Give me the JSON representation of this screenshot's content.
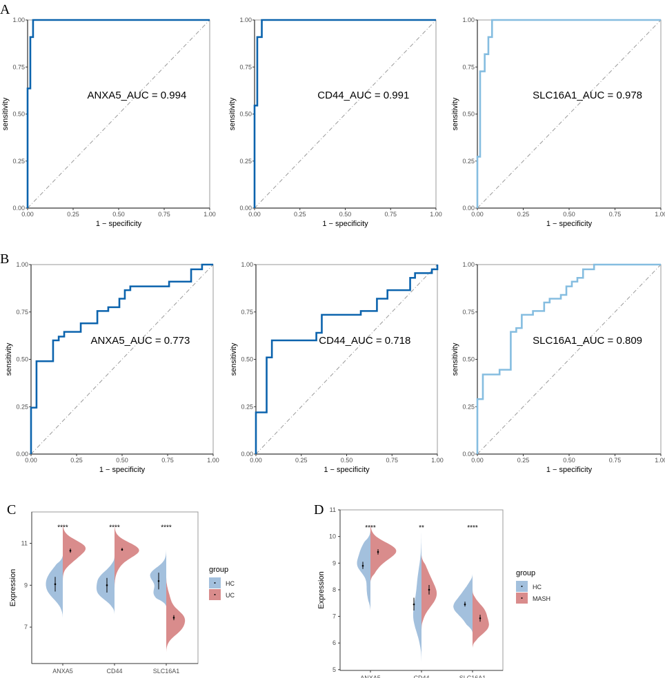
{
  "panel_letters": [
    "A",
    "B",
    "C",
    "D"
  ],
  "colors": {
    "roc_dark": "#0b63ad",
    "roc_light": "#85bde0",
    "HC": "#a3c0dd",
    "UC": "#d98c8c",
    "MASH": "#d98c8c",
    "diagonal": "#9a9a9a"
  },
  "chart_data": [
    {
      "panel": "A",
      "type": "line",
      "gene": "ANXA5",
      "label": "ANXA5_AUC =  0.994",
      "xlabel": "1 − specificity",
      "ylabel": "sensitivity",
      "xlim": [
        0,
        1
      ],
      "ylim": [
        0,
        1
      ],
      "xticks": [
        "0.00",
        "0.25",
        "0.50",
        "0.75",
        "1.00"
      ],
      "yticks": [
        "0.00",
        "0.25",
        "0.50",
        "0.75",
        "1.00"
      ],
      "color": "roc_dark",
      "points": [
        [
          0,
          0.636
        ],
        [
          0.015,
          0.909
        ],
        [
          0.03,
          1
        ],
        [
          1,
          1
        ]
      ]
    },
    {
      "panel": "A",
      "type": "line",
      "gene": "CD44",
      "label": "CD44_AUC =  0.991",
      "xlabel": "1 − specificity",
      "ylabel": "sensitivity",
      "xlim": [
        0,
        1
      ],
      "ylim": [
        0,
        1
      ],
      "xticks": [
        "0.00",
        "0.25",
        "0.50",
        "0.75",
        "1.00"
      ],
      "yticks": [
        "0.00",
        "0.25",
        "0.50",
        "0.75",
        "1.00"
      ],
      "color": "roc_dark",
      "points": [
        [
          0,
          0.545
        ],
        [
          0.015,
          0.909
        ],
        [
          0.04,
          1
        ],
        [
          1,
          1
        ]
      ]
    },
    {
      "panel": "A",
      "type": "line",
      "gene": "SLC16A1",
      "label": "SLC16A1_AUC =  0.978",
      "xlabel": "1 − specificity",
      "ylabel": "sensitivity",
      "xlim": [
        0,
        1
      ],
      "ylim": [
        0,
        1
      ],
      "xticks": [
        "0.00",
        "0.25",
        "0.50",
        "0.75",
        "1.00"
      ],
      "yticks": [
        "0.00",
        "0.25",
        "0.50",
        "0.75",
        "1.00"
      ],
      "color": "roc_light",
      "points": [
        [
          0,
          0.273
        ],
        [
          0.015,
          0.727
        ],
        [
          0.04,
          0.818
        ],
        [
          0.06,
          0.909
        ],
        [
          0.08,
          1
        ],
        [
          1,
          1
        ]
      ]
    },
    {
      "panel": "B",
      "type": "line",
      "gene": "ANXA5",
      "label": "ANXA5_AUC =  0.773",
      "xlabel": "1 − specificity",
      "ylabel": "sensitivity",
      "xlim": [
        0,
        1
      ],
      "ylim": [
        0,
        1
      ],
      "xticks": [
        "0.00",
        "0.25",
        "0.50",
        "0.75",
        "1.00"
      ],
      "yticks": [
        "0.00",
        "0.25",
        "0.50",
        "0.75",
        "1.00"
      ],
      "color": "roc_dark",
      "points": [
        [
          0,
          0.245
        ],
        [
          0.03,
          0.49
        ],
        [
          0.121,
          0.6
        ],
        [
          0.152,
          0.62
        ],
        [
          0.182,
          0.645
        ],
        [
          0.273,
          0.69
        ],
        [
          0.364,
          0.755
        ],
        [
          0.424,
          0.775
        ],
        [
          0.485,
          0.82
        ],
        [
          0.515,
          0.865
        ],
        [
          0.545,
          0.885
        ],
        [
          0.758,
          0.91
        ],
        [
          0.879,
          0.975
        ],
        [
          0.939,
          1
        ],
        [
          1,
          1
        ]
      ]
    },
    {
      "panel": "B",
      "type": "line",
      "gene": "CD44",
      "label": "CD44_AUC =  0.718",
      "xlabel": "1 − specificity",
      "ylabel": "sensitivity",
      "xlim": [
        0,
        1
      ],
      "ylim": [
        0,
        1
      ],
      "xticks": [
        "0.00",
        "0.25",
        "0.50",
        "0.75",
        "1.00"
      ],
      "yticks": [
        "0.00",
        "0.25",
        "0.50",
        "0.75",
        "1.00"
      ],
      "color": "roc_dark",
      "points": [
        [
          0,
          0.22
        ],
        [
          0.059,
          0.51
        ],
        [
          0.088,
          0.6
        ],
        [
          0.333,
          0.64
        ],
        [
          0.363,
          0.735
        ],
        [
          0.578,
          0.755
        ],
        [
          0.667,
          0.82
        ],
        [
          0.725,
          0.865
        ],
        [
          0.85,
          0.93
        ],
        [
          0.877,
          0.955
        ],
        [
          0.97,
          0.975
        ],
        [
          1,
          0.978
        ],
        [
          1,
          1
        ]
      ]
    },
    {
      "panel": "B",
      "type": "line",
      "gene": "SLC16A1",
      "label": "SLC16A1_AUC =  0.809",
      "xlabel": "1 − specificity",
      "ylabel": "sensitivity",
      "xlim": [
        0,
        1
      ],
      "ylim": [
        0,
        1
      ],
      "xticks": [
        "0.00",
        "0.25",
        "0.50",
        "0.75",
        "1.00"
      ],
      "yticks": [
        "0.00",
        "0.25",
        "0.50",
        "0.75",
        "1.00"
      ],
      "color": "roc_light",
      "points": [
        [
          0,
          0.29
        ],
        [
          0.03,
          0.42
        ],
        [
          0.121,
          0.445
        ],
        [
          0.182,
          0.645
        ],
        [
          0.212,
          0.665
        ],
        [
          0.242,
          0.735
        ],
        [
          0.303,
          0.755
        ],
        [
          0.364,
          0.8
        ],
        [
          0.394,
          0.82
        ],
        [
          0.455,
          0.84
        ],
        [
          0.485,
          0.885
        ],
        [
          0.515,
          0.91
        ],
        [
          0.545,
          0.93
        ],
        [
          0.576,
          0.975
        ],
        [
          0.636,
          1
        ],
        [
          1,
          1
        ]
      ]
    },
    {
      "panel": "C",
      "type": "split-violin",
      "ylabel": "Expression",
      "ylim": [
        5.26,
        12.5
      ],
      "yticks": [
        7,
        9,
        11
      ],
      "categories": [
        "ANXA5",
        "CD44",
        "SLC16A1"
      ],
      "groups": [
        "HC",
        "UC"
      ],
      "legend_title": "group",
      "legend": "right",
      "significance": [
        "****",
        "****",
        "****"
      ],
      "significance_y": 11.8,
      "violins": [
        {
          "HC": {
            "range": [
              7.4,
              10.4
            ],
            "density": [
              [
                9.3,
                0.55,
                0.6
              ],
              [
                8.6,
                0.4,
                0.3
              ]
            ],
            "mean": 9.05,
            "err": [
              8.7,
              9.4
            ]
          },
          "UC": {
            "range": [
              9.0,
              12.1
            ],
            "density": [
              [
                10.8,
                0.35,
                0.9
              ],
              [
                10.2,
                0.3,
                0.3
              ]
            ],
            "mean": 10.65,
            "err": [
              10.55,
              10.75
            ]
          }
        },
        {
          "HC": {
            "range": [
              7.6,
              10.4
            ],
            "density": [
              [
                9.3,
                0.4,
                0.6
              ],
              [
                8.6,
                0.35,
                0.55
              ]
            ],
            "mean": 9.0,
            "err": [
              8.65,
              9.35
            ]
          },
          "UC": {
            "range": [
              8.7,
              12.2
            ],
            "density": [
              [
                10.7,
                0.35,
                0.95
              ],
              [
                10.1,
                0.4,
                0.2
              ]
            ],
            "mean": 10.7,
            "err": [
              10.65,
              10.78
            ]
          }
        },
        {
          "HC": {
            "range": [
              8.0,
              10.9
            ],
            "density": [
              [
                9.5,
                0.35,
                0.65
              ],
              [
                8.6,
                0.35,
                0.5
              ]
            ],
            "mean": 9.2,
            "err": [
              8.8,
              9.6
            ]
          },
          "UC": {
            "range": [
              5.6,
              9.5
            ],
            "density": [
              [
                7.5,
                0.35,
                0.6
              ],
              [
                6.9,
                0.35,
                0.5
              ],
              [
                8.3,
                0.4,
                0.15
              ]
            ],
            "mean": 7.45,
            "err": [
              7.33,
              7.57
            ]
          }
        }
      ]
    },
    {
      "panel": "D",
      "type": "split-violin",
      "ylabel": "Expression",
      "ylim": [
        4.97,
        11.0
      ],
      "yticks": [
        5,
        6,
        7,
        8,
        9,
        10,
        11
      ],
      "categories": [
        "ANXA5",
        "CD44",
        "SLC16A1"
      ],
      "groups": [
        "HC",
        "MASH"
      ],
      "legend_title": "group",
      "legend": "right",
      "significance": [
        "****",
        "**",
        "****"
      ],
      "significance_y": 10.35,
      "violins": [
        {
          "HC": {
            "range": [
              7.2,
              10.2
            ],
            "density": [
              [
                8.9,
                0.3,
                0.45
              ],
              [
                9.5,
                0.35,
                0.35
              ],
              [
                8.0,
                0.4,
                0.15
              ]
            ],
            "mean": 8.9,
            "err": [
              8.78,
              9.05
            ]
          },
          "MASH": {
            "range": [
              8.3,
              10.6
            ],
            "density": [
              [
                9.5,
                0.3,
                0.95
              ],
              [
                9.0,
                0.35,
                0.3
              ]
            ],
            "mean": 9.42,
            "err": [
              9.32,
              9.52
            ]
          }
        },
        {
          "HC": {
            "range": [
              5.2,
              10.7
            ],
            "density": [
              [
                7.0,
                0.6,
                0.33
              ],
              [
                8.3,
                0.6,
                0.15
              ]
            ],
            "mean": 7.45,
            "err": [
              7.22,
              7.7
            ]
          },
          "MASH": {
            "range": [
              6.5,
              9.3
            ],
            "density": [
              [
                7.8,
                0.45,
                0.6
              ],
              [
                8.6,
                0.4,
                0.2
              ]
            ],
            "mean": 8.0,
            "err": [
              7.82,
              8.18
            ]
          }
        },
        {
          "HC": {
            "range": [
              6.4,
              8.6
            ],
            "density": [
              [
                7.35,
                0.3,
                0.7
              ],
              [
                7.9,
                0.3,
                0.3
              ],
              [
                6.8,
                0.3,
                0.2
              ]
            ],
            "mean": 7.45,
            "err": [
              7.37,
              7.55
            ]
          },
          "MASH": {
            "range": [
              5.8,
              8.0
            ],
            "density": [
              [
                6.6,
                0.3,
                0.6
              ],
              [
                7.2,
                0.3,
                0.45
              ]
            ],
            "mean": 6.93,
            "err": [
              6.8,
              7.06
            ]
          }
        }
      ]
    }
  ]
}
